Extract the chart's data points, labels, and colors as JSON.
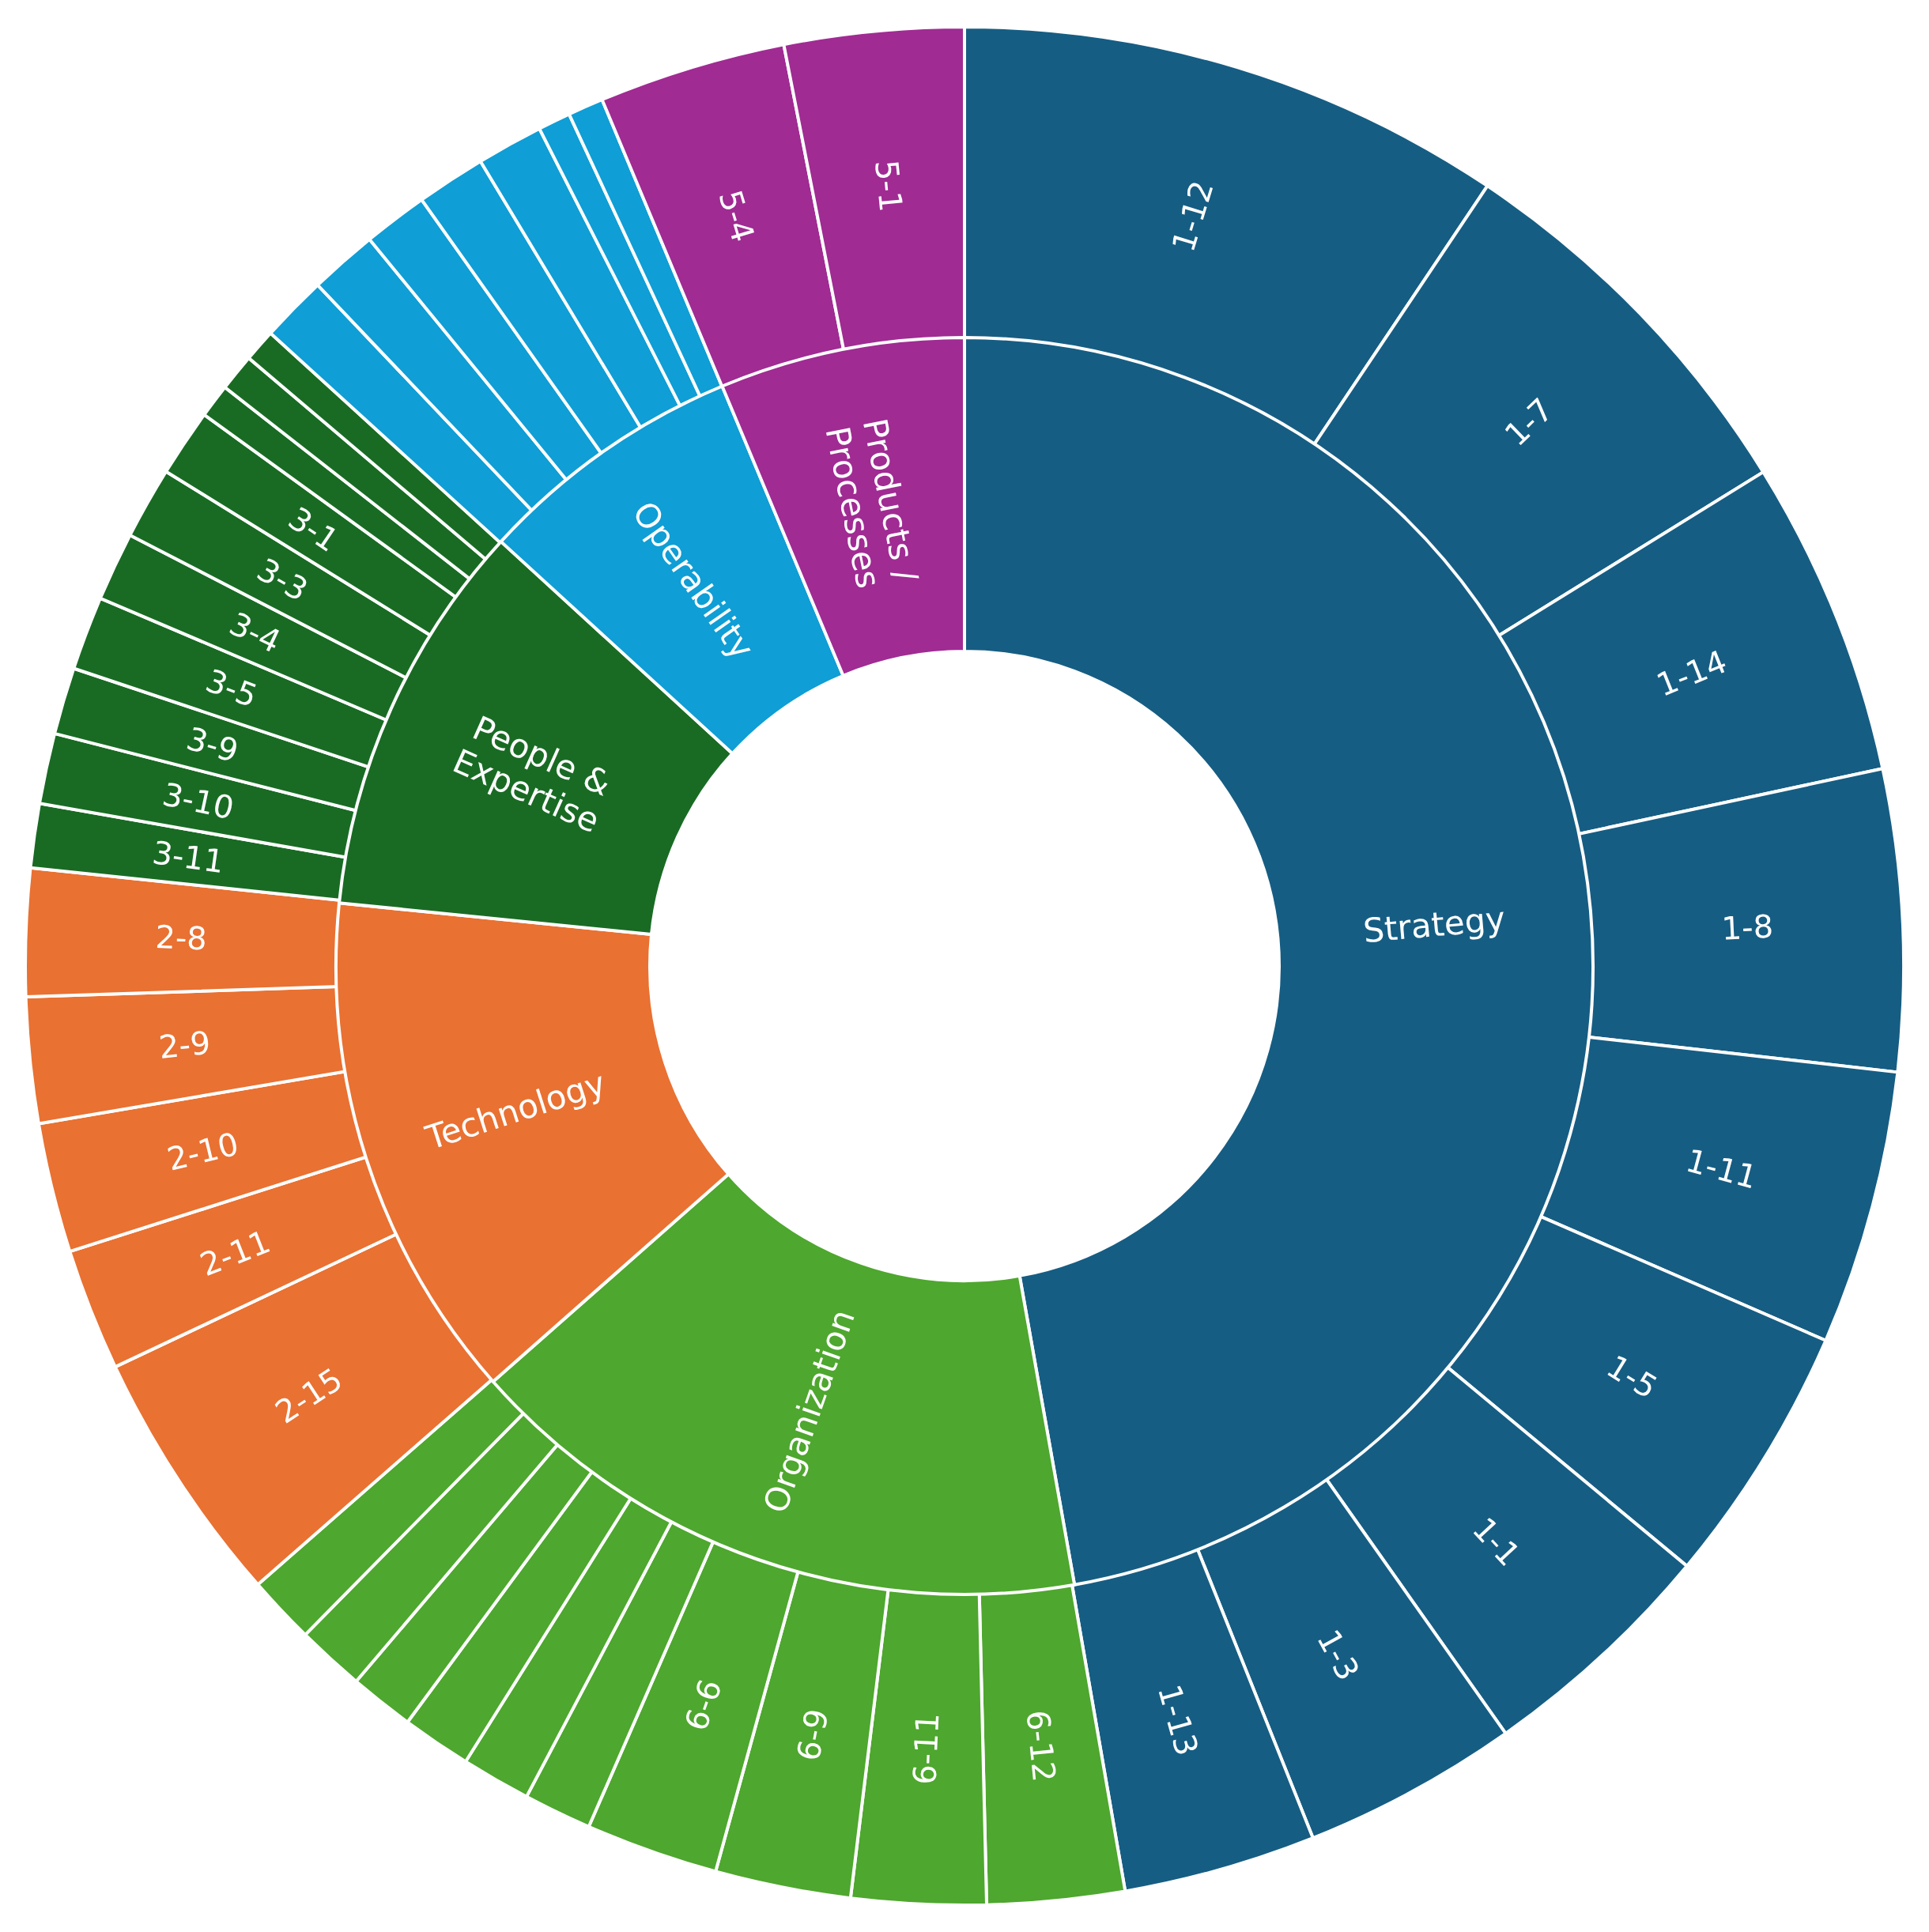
{
  "chart_data": [
    {
      "type": "donut",
      "categories": [
        "Strategy",
        "Organization",
        "Technology",
        "People & Expertise",
        "Operability",
        "Products / Processes"
      ],
      "values": [
        47.2,
        16.3,
        13.1,
        10.2,
        6.9,
        6.3
      ],
      "colors": [
        "#165d83",
        "#4ea72e",
        "#e97132",
        "#196b24",
        "#0f9ed5",
        "#a02b93"
      ]
    },
    {
      "type": "donut",
      "categories": [
        "1-12",
        "1-7",
        "1-14",
        "1-8",
        "1-11",
        "1-5",
        "1-1",
        "1-3",
        "1-13",
        "6-12",
        "6-11",
        "6-9",
        "6-6",
        null,
        null,
        null,
        null,
        null,
        null,
        "2-15",
        "2-11",
        "2-10",
        "2-9",
        "2-8",
        "3-11",
        "3-10",
        "3-9",
        "3-5",
        "3-4",
        "3-3",
        "3-1",
        null,
        null,
        null,
        null,
        null,
        null,
        null,
        null,
        null,
        null,
        "5-4",
        "5-1"
      ],
      "values": [
        9.39,
        6.78,
        5.44,
        5.17,
        4.72,
        4.5,
        4.19,
        3.72,
        3.31,
        2.36,
        2.31,
        2.33,
        2.28,
        1.17,
        1.19,
        1.19,
        1.11,
        1.17,
        1.17,
        4.42,
        2.1,
        2.23,
        2.16,
        2.19,
        1.1,
        1.21,
        1.15,
        1.27,
        1.18,
        1.24,
        1.16,
        0.58,
        0.64,
        0.56,
        1.14,
        1.17,
        1.11,
        1.19,
        1.14,
        0.56,
        0.61,
        3.22,
        3.08
      ],
      "colors": [
        "#165d83",
        "#165d83",
        "#165d83",
        "#165d83",
        "#165d83",
        "#165d83",
        "#165d83",
        "#165d83",
        "#165d83",
        "#4ea72e",
        "#4ea72e",
        "#4ea72e",
        "#4ea72e",
        "#4ea72e",
        "#4ea72e",
        "#4ea72e",
        "#4ea72e",
        "#4ea72e",
        "#4ea72e",
        "#e97132",
        "#e97132",
        "#e97132",
        "#e97132",
        "#e97132",
        "#196b24",
        "#196b24",
        "#196b24",
        "#196b24",
        "#196b24",
        "#196b24",
        "#196b24",
        "#196b24",
        "#196b24",
        "#196b24",
        "#0f9ed5",
        "#0f9ed5",
        "#0f9ed5",
        "#0f9ed5",
        "#0f9ed5",
        "#0f9ed5",
        "#0f9ed5",
        "#a02b93",
        "#a02b93"
      ]
    }
  ]
}
